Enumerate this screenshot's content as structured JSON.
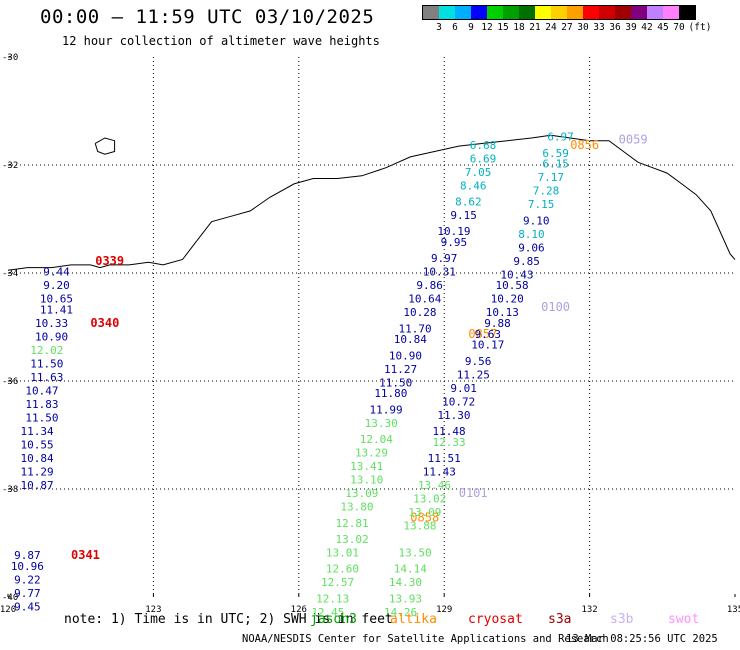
{
  "header": {
    "title": "00:00 – 11:59 UTC 03/10/2025",
    "subtitle": "12 hour collection of altimeter wave heights"
  },
  "colorbar": {
    "unit": "(ft)",
    "colors": [
      "#808080",
      "#00e0e0",
      "#00b0ff",
      "#0000ff",
      "#00d000",
      "#00a000",
      "#007000",
      "#ffff00",
      "#ffd000",
      "#ffa000",
      "#ff0000",
      "#d00000",
      "#a00000",
      "#800080",
      "#c080ff",
      "#ff80ff",
      "#000000"
    ],
    "tick_labels": [
      "3",
      "6",
      "9",
      "12",
      "15",
      "18",
      "21",
      "24",
      "27",
      "30",
      "33",
      "36",
      "39",
      "42",
      "45",
      "70"
    ]
  },
  "map": {
    "lon_ticks": [
      "120",
      "123",
      "126",
      "129",
      "132",
      "135"
    ],
    "lat_ticks": [
      "-30",
      "-32",
      "-34",
      "-36",
      "-38",
      "-40"
    ],
    "colors": {
      "cyan": "#00b0c0",
      "blue": "#0000a0",
      "green": "#60e060",
      "red": "#e00000",
      "orange": "#ff8c00",
      "lavender": "#b0a0e0"
    },
    "tracks": [
      {
        "satellite": "cryosat",
        "time_labels": [
          {
            "text": "0339",
            "color": "red",
            "lon": 121.8,
            "lat": -33.85
          },
          {
            "text": "0340",
            "color": "red",
            "lon": 121.7,
            "lat": -35.0
          },
          {
            "text": "0341",
            "color": "red",
            "lon": 121.3,
            "lat": -39.3
          }
        ],
        "heights": [
          {
            "v": "9.44",
            "c": "blue",
            "lon": 121.0,
            "lat": -34.05
          },
          {
            "v": "9.20",
            "c": "blue",
            "lon": 121.0,
            "lat": -34.3
          },
          {
            "v": "10.65",
            "c": "blue",
            "lon": 121.0,
            "lat": -34.55
          },
          {
            "v": "11.41",
            "c": "blue",
            "lon": 121.0,
            "lat": -34.75
          },
          {
            "v": "10.33",
            "c": "blue",
            "lon": 120.9,
            "lat": -35.0
          },
          {
            "v": "10.90",
            "c": "blue",
            "lon": 120.9,
            "lat": -35.25
          },
          {
            "v": "12.02",
            "c": "green",
            "lon": 120.8,
            "lat": -35.5
          },
          {
            "v": "11.50",
            "c": "blue",
            "lon": 120.8,
            "lat": -35.75
          },
          {
            "v": "11.63",
            "c": "blue",
            "lon": 120.8,
            "lat": -36.0
          },
          {
            "v": "10.47",
            "c": "blue",
            "lon": 120.7,
            "lat": -36.25
          },
          {
            "v": "11.83",
            "c": "blue",
            "lon": 120.7,
            "lat": -36.5
          },
          {
            "v": "11.50",
            "c": "blue",
            "lon": 120.7,
            "lat": -36.75
          },
          {
            "v": "11.34",
            "c": "blue",
            "lon": 120.6,
            "lat": -37.0
          },
          {
            "v": "10.55",
            "c": "blue",
            "lon": 120.6,
            "lat": -37.25
          },
          {
            "v": "10.84",
            "c": "blue",
            "lon": 120.6,
            "lat": -37.5
          },
          {
            "v": "11.29",
            "c": "blue",
            "lon": 120.6,
            "lat": -37.75
          },
          {
            "v": "10.87",
            "c": "blue",
            "lon": 120.6,
            "lat": -38.0
          },
          {
            "v": "9.87",
            "c": "blue",
            "lon": 120.4,
            "lat": -39.3
          },
          {
            "v": "10.96",
            "c": "blue",
            "lon": 120.4,
            "lat": -39.5
          },
          {
            "v": "9.22",
            "c": "blue",
            "lon": 120.4,
            "lat": -39.75
          },
          {
            "v": "9.77",
            "c": "blue",
            "lon": 120.4,
            "lat": -40.0
          },
          {
            "v": "9.45",
            "c": "blue",
            "lon": 120.4,
            "lat": -40.25
          }
        ]
      },
      {
        "satellite": "altika",
        "time_labels": [
          {
            "text": "0856",
            "color": "orange",
            "lon": 131.6,
            "lat": -31.7
          },
          {
            "text": "0857",
            "color": "orange",
            "lon": 129.5,
            "lat": -35.2
          },
          {
            "text": "0858",
            "color": "orange",
            "lon": 128.3,
            "lat": -38.6
          }
        ],
        "heights": []
      },
      {
        "satellite": "s3b",
        "time_labels": [
          {
            "text": "0059",
            "color": "lavender",
            "lon": 132.6,
            "lat": -31.6
          },
          {
            "text": "0100",
            "color": "lavender",
            "lon": 131.0,
            "lat": -34.7
          },
          {
            "text": "0101",
            "color": "lavender",
            "lon": 129.3,
            "lat": -38.15
          }
        ],
        "heights": [
          {
            "v": "6.97",
            "c": "cyan",
            "lon": 131.4,
            "lat": -31.55
          },
          {
            "v": "6.68",
            "c": "cyan",
            "lon": 129.8,
            "lat": -31.7
          },
          {
            "v": "6.59",
            "c": "cyan",
            "lon": 131.3,
            "lat": -31.85
          },
          {
            "v": "6.69",
            "c": "cyan",
            "lon": 129.8,
            "lat": -31.95
          },
          {
            "v": "6.15",
            "c": "cyan",
            "lon": 131.3,
            "lat": -32.05
          },
          {
            "v": "7.05",
            "c": "cyan",
            "lon": 129.7,
            "lat": -32.2
          },
          {
            "v": "7.17",
            "c": "cyan",
            "lon": 131.2,
            "lat": -32.3
          },
          {
            "v": "8.46",
            "c": "cyan",
            "lon": 129.6,
            "lat": -32.45
          },
          {
            "v": "7.28",
            "c": "cyan",
            "lon": 131.1,
            "lat": -32.55
          },
          {
            "v": "8.62",
            "c": "cyan",
            "lon": 129.5,
            "lat": -32.75
          },
          {
            "v": "7.15",
            "c": "cyan",
            "lon": 131.0,
            "lat": -32.8
          },
          {
            "v": "9.15",
            "c": "blue",
            "lon": 129.4,
            "lat": -33.0
          },
          {
            "v": "9.10",
            "c": "blue",
            "lon": 130.9,
            "lat": -33.1
          },
          {
            "v": "10.19",
            "c": "blue",
            "lon": 129.2,
            "lat": -33.3
          },
          {
            "v": "8.10",
            "c": "cyan",
            "lon": 130.8,
            "lat": -33.35
          },
          {
            "v": "9.95",
            "c": "blue",
            "lon": 129.2,
            "lat": -33.5
          },
          {
            "v": "9.06",
            "c": "blue",
            "lon": 130.8,
            "lat": -33.6
          },
          {
            "v": "9.97",
            "c": "blue",
            "lon": 129.0,
            "lat": -33.8
          },
          {
            "v": "9.85",
            "c": "blue",
            "lon": 130.7,
            "lat": -33.85
          },
          {
            "v": "10.31",
            "c": "blue",
            "lon": 128.9,
            "lat": -34.05
          },
          {
            "v": "10.43",
            "c": "blue",
            "lon": 130.5,
            "lat": -34.1
          },
          {
            "v": "9.86",
            "c": "blue",
            "lon": 128.7,
            "lat": -34.3
          },
          {
            "v": "10.58",
            "c": "blue",
            "lon": 130.4,
            "lat": -34.3
          },
          {
            "v": "10.64",
            "c": "blue",
            "lon": 128.6,
            "lat": -34.55
          },
          {
            "v": "10.20",
            "c": "blue",
            "lon": 130.3,
            "lat": -34.55
          },
          {
            "v": "10.28",
            "c": "blue",
            "lon": 128.5,
            "lat": -34.8
          },
          {
            "v": "10.13",
            "c": "blue",
            "lon": 130.2,
            "lat": -34.8
          },
          {
            "v": "9.88",
            "c": "blue",
            "lon": 130.1,
            "lat": -35.0
          },
          {
            "v": "11.70",
            "c": "blue",
            "lon": 128.4,
            "lat": -35.1
          },
          {
            "v": "9.63",
            "c": "blue",
            "lon": 129.9,
            "lat": -35.2
          },
          {
            "v": "10.84",
            "c": "blue",
            "lon": 128.3,
            "lat": -35.3
          },
          {
            "v": "10.17",
            "c": "blue",
            "lon": 129.9,
            "lat": -35.4
          },
          {
            "v": "10.90",
            "c": "blue",
            "lon": 128.2,
            "lat": -35.6
          },
          {
            "v": "9.56",
            "c": "blue",
            "lon": 129.7,
            "lat": -35.7
          },
          {
            "v": "11.27",
            "c": "blue",
            "lon": 128.1,
            "lat": -35.85
          },
          {
            "v": "11.25",
            "c": "blue",
            "lon": 129.6,
            "lat": -35.95
          },
          {
            "v": "11.50",
            "c": "blue",
            "lon": 128.0,
            "lat": -36.1
          },
          {
            "v": "9.01",
            "c": "blue",
            "lon": 129.4,
            "lat": -36.2
          },
          {
            "v": "11.80",
            "c": "blue",
            "lon": 127.9,
            "lat": -36.3
          },
          {
            "v": "10.72",
            "c": "blue",
            "lon": 129.3,
            "lat": -36.45
          },
          {
            "v": "11.99",
            "c": "blue",
            "lon": 127.8,
            "lat": -36.6
          },
          {
            "v": "11.30",
            "c": "blue",
            "lon": 129.2,
            "lat": -36.7
          },
          {
            "v": "13.30",
            "c": "green",
            "lon": 127.7,
            "lat": -36.85
          },
          {
            "v": "11.48",
            "c": "blue",
            "lon": 129.1,
            "lat": -37.0
          },
          {
            "v": "12.04",
            "c": "green",
            "lon": 127.6,
            "lat": -37.15
          },
          {
            "v": "12.33",
            "c": "green",
            "lon": 129.1,
            "lat": -37.2
          },
          {
            "v": "13.29",
            "c": "green",
            "lon": 127.5,
            "lat": -37.4
          },
          {
            "v": "11.51",
            "c": "blue",
            "lon": 129.0,
            "lat": -37.5
          },
          {
            "v": "13.41",
            "c": "green",
            "lon": 127.4,
            "lat": -37.65
          },
          {
            "v": "11.43",
            "c": "blue",
            "lon": 128.9,
            "lat": -37.75
          },
          {
            "v": "13.10",
            "c": "green",
            "lon": 127.4,
            "lat": -37.9
          },
          {
            "v": "13.46",
            "c": "green",
            "lon": 128.8,
            "lat": -38.0
          },
          {
            "v": "13.09",
            "c": "green",
            "lon": 127.3,
            "lat": -38.15
          },
          {
            "v": "13.02",
            "c": "green",
            "lon": 128.7,
            "lat": -38.25
          },
          {
            "v": "13.80",
            "c": "green",
            "lon": 127.2,
            "lat": -38.4
          },
          {
            "v": "13.09",
            "c": "green",
            "lon": 128.6,
            "lat": -38.5
          },
          {
            "v": "12.81",
            "c": "green",
            "lon": 127.1,
            "lat": -38.7
          },
          {
            "v": "13.88",
            "c": "green",
            "lon": 128.5,
            "lat": -38.75
          },
          {
            "v": "13.02",
            "c": "green",
            "lon": 127.1,
            "lat": -39.0
          },
          {
            "v": "13.50",
            "c": "green",
            "lon": 128.4,
            "lat": -39.25
          },
          {
            "v": "13.01",
            "c": "green",
            "lon": 126.9,
            "lat": -39.25
          },
          {
            "v": "12.60",
            "c": "green",
            "lon": 126.9,
            "lat": -39.55
          },
          {
            "v": "14.14",
            "c": "green",
            "lon": 128.3,
            "lat": -39.55
          },
          {
            "v": "12.57",
            "c": "green",
            "lon": 126.8,
            "lat": -39.8
          },
          {
            "v": "14.30",
            "c": "green",
            "lon": 128.2,
            "lat": -39.8
          },
          {
            "v": "12.13",
            "c": "green",
            "lon": 126.7,
            "lat": -40.1
          },
          {
            "v": "13.93",
            "c": "green",
            "lon": 128.2,
            "lat": -40.1
          },
          {
            "v": "12.45",
            "c": "green",
            "lon": 126.6,
            "lat": -40.35
          },
          {
            "v": "14.26",
            "c": "green",
            "lon": 128.1,
            "lat": -40.35
          }
        ]
      }
    ],
    "coastline": [
      [
        120.0,
        -33.95
      ],
      [
        120.4,
        -33.9
      ],
      [
        120.9,
        -33.9
      ],
      [
        121.3,
        -33.85
      ],
      [
        121.7,
        -33.85
      ],
      [
        121.9,
        -33.9
      ],
      [
        122.1,
        -33.85
      ],
      [
        122.5,
        -33.85
      ],
      [
        122.9,
        -33.8
      ],
      [
        123.2,
        -33.85
      ],
      [
        123.6,
        -33.75
      ],
      [
        123.9,
        -33.4
      ],
      [
        124.2,
        -33.05
      ],
      [
        124.6,
        -32.95
      ],
      [
        125.0,
        -32.85
      ],
      [
        125.4,
        -32.6
      ],
      [
        125.9,
        -32.35
      ],
      [
        126.3,
        -32.25
      ],
      [
        126.8,
        -32.25
      ],
      [
        127.3,
        -32.2
      ],
      [
        127.8,
        -32.05
      ],
      [
        128.3,
        -31.85
      ],
      [
        128.8,
        -31.75
      ],
      [
        129.3,
        -31.65
      ],
      [
        129.8,
        -31.6
      ],
      [
        130.3,
        -31.55
      ],
      [
        130.8,
        -31.5
      ],
      [
        131.2,
        -31.45
      ],
      [
        131.6,
        -31.5
      ],
      [
        132.0,
        -31.55
      ],
      [
        132.4,
        -31.55
      ],
      [
        132.7,
        -31.75
      ],
      [
        133.0,
        -31.95
      ],
      [
        133.3,
        -32.05
      ],
      [
        133.6,
        -32.15
      ],
      [
        133.9,
        -32.35
      ],
      [
        134.2,
        -32.55
      ],
      [
        134.5,
        -32.85
      ],
      [
        134.7,
        -33.25
      ],
      [
        134.9,
        -33.65
      ],
      [
        135.0,
        -33.75
      ]
    ],
    "island": [
      [
        121.8,
        -31.6
      ],
      [
        122.0,
        -31.5
      ],
      [
        122.2,
        -31.55
      ],
      [
        122.2,
        -31.75
      ],
      [
        122.0,
        -31.8
      ],
      [
        121.85,
        -31.75
      ],
      [
        121.8,
        -31.6
      ]
    ]
  },
  "footer": {
    "note": "note: 1) Time is in UTC; 2) SWH is in feet",
    "satellites": [
      {
        "name": "jason3",
        "color": "#00a000"
      },
      {
        "name": "altika",
        "color": "#ff8c00"
      },
      {
        "name": "cryosat",
        "color": "#e00000"
      },
      {
        "name": "s3a",
        "color": "#a00000"
      },
      {
        "name": "s3b",
        "color": "#c8b0f0"
      },
      {
        "name": "swot",
        "color": "#ff90ff"
      }
    ],
    "credit": "NOAA/NESDIS Center for Satellite Applications and Research",
    "timestamp": "13 Mar 08:25:56 UTC 2025"
  }
}
